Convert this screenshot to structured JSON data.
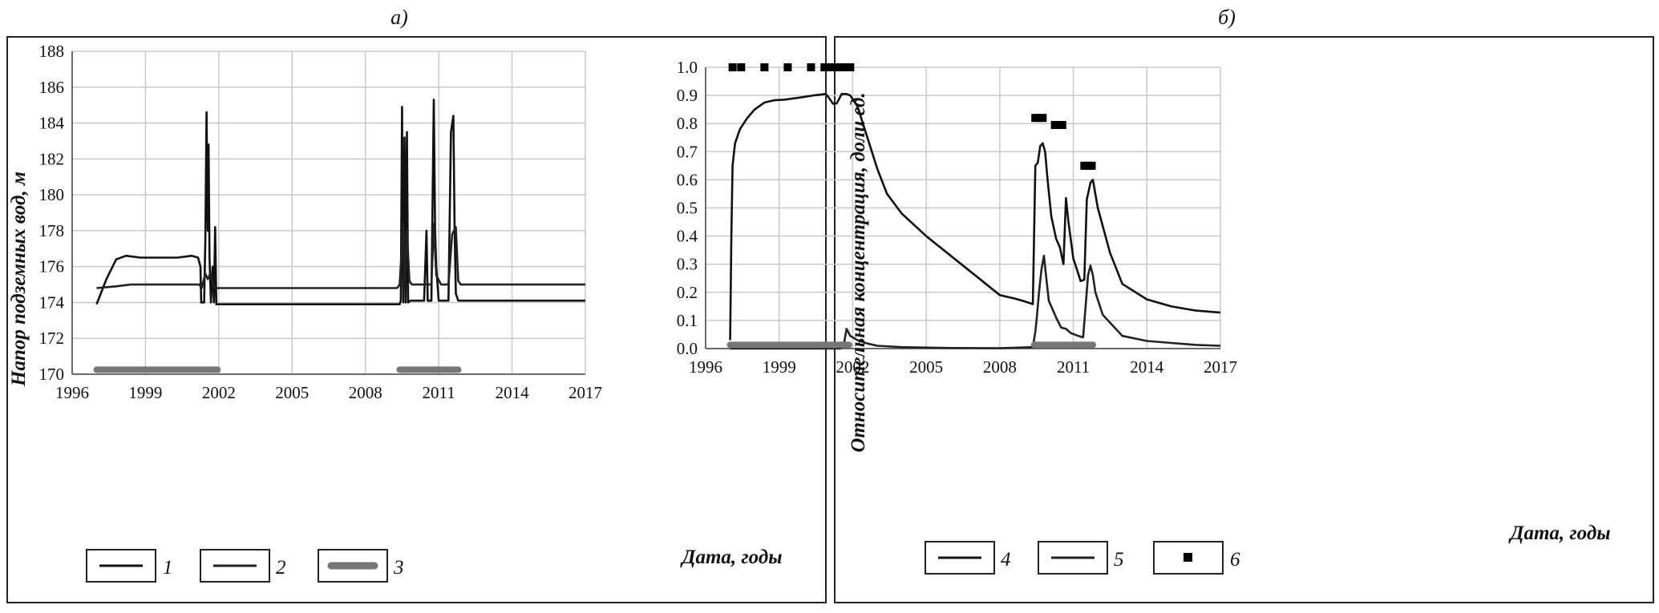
{
  "chart_data": [
    {
      "type": "line",
      "title": "а)",
      "xlabel": "Дата, годы",
      "ylabel": "Напор подземных вод, м",
      "xlim": [
        1996,
        2017
      ],
      "ylim": [
        170,
        188
      ],
      "xticks": [
        1996,
        1999,
        2002,
        2005,
        2008,
        2011,
        2014,
        2017
      ],
      "yticks": [
        170,
        172,
        174,
        176,
        178,
        180,
        182,
        184,
        186,
        188
      ],
      "grid": "on",
      "legend": "bottom-left",
      "series": [
        {
          "name": "1",
          "color": "#111111",
          "style": "line",
          "x": [
            1997,
            1997.4,
            1997.8,
            1998.2,
            1998.8,
            1999.5,
            2000.3,
            2000.9,
            2001.15,
            2001.25,
            2001.28,
            2001.4,
            2001.45,
            2001.5,
            2001.55,
            2001.58,
            2001.62,
            2001.68,
            2001.75,
            2001.8,
            2001.85,
            2001.9,
            2001.95,
            2002.0,
            2009.4,
            2009.45,
            2009.5,
            2009.55,
            2009.6,
            2009.65,
            2009.7,
            2009.75,
            2009.85,
            2010.4,
            2010.5,
            2010.55,
            2010.6,
            2010.7,
            2010.8,
            2010.85,
            2010.9,
            2011.0,
            2011.1,
            2011.4,
            2011.5,
            2011.6,
            2011.65,
            2011.7,
            2011.8,
            2017
          ],
          "y": [
            173.9,
            175.3,
            176.4,
            176.6,
            176.5,
            176.5,
            176.5,
            176.6,
            176.5,
            176.0,
            174.0,
            174.0,
            177.5,
            184.6,
            178.0,
            182.8,
            176.5,
            174.0,
            176.0,
            174.0,
            178.2,
            173.9,
            173.9,
            173.9,
            173.9,
            174.1,
            184.9,
            174.0,
            183.2,
            174.0,
            183.5,
            174.0,
            174.1,
            174.1,
            178.0,
            174.1,
            174.1,
            174.1,
            185.3,
            178.0,
            176.0,
            174.1,
            174.1,
            174.1,
            183.5,
            184.4,
            178.0,
            174.5,
            174.1,
            174.1
          ]
        },
        {
          "name": "2",
          "color": "#222222",
          "style": "line",
          "x": [
            1997,
            1997.8,
            1998.4,
            1999.5,
            2000.5,
            2001.2,
            2001.3,
            2001.45,
            2001.55,
            2001.65,
            2001.75,
            2001.85,
            2001.95,
            2002.1,
            2008.0,
            2009.3,
            2009.4,
            2009.55,
            2009.6,
            2009.7,
            2009.8,
            2009.9,
            2010.1,
            2010.4,
            2010.7,
            2010.8,
            2010.9,
            2011.1,
            2011.4,
            2011.55,
            2011.7,
            2011.8,
            2011.9,
            2017
          ],
          "y": [
            174.8,
            174.9,
            175.0,
            175.0,
            175.0,
            175.0,
            174.8,
            175.6,
            175.3,
            175.6,
            175.1,
            174.8,
            174.8,
            174.8,
            174.8,
            174.8,
            175.0,
            178.4,
            175.0,
            178.0,
            175.2,
            175.0,
            175.0,
            175.0,
            175.0,
            178.4,
            175.5,
            175.0,
            175.0,
            177.8,
            178.2,
            175.2,
            175.0,
            175.0
          ]
        },
        {
          "name": "3",
          "color": "#777777",
          "style": "thick-band",
          "x": [
            1997,
            2001.95
          ],
          "y": [
            170.25,
            170.25
          ],
          "x2": [
            2009.4,
            2011.8
          ],
          "y2": [
            170.25,
            170.25
          ]
        }
      ]
    },
    {
      "type": "line",
      "title": "б)",
      "xlabel": "Дата, годы",
      "ylabel": "Относительная концентрация, доли ед.",
      "xlim": [
        1996,
        2017
      ],
      "ylim": [
        0,
        1
      ],
      "xticks": [
        1996,
        1999,
        2002,
        2005,
        2008,
        2011,
        2014,
        2017
      ],
      "yticks": [
        "0.0",
        "0.1",
        "0.2",
        "0.3",
        "0.4",
        "0.5",
        "0.6",
        "0.7",
        "0.8",
        "0.9",
        "1.0"
      ],
      "grid": "on",
      "legend": "bottom-left",
      "series": [
        {
          "name": "4",
          "color": "#111111",
          "style": "line",
          "x": [
            1997,
            1997.05,
            1997.1,
            1997.2,
            1997.4,
            1997.7,
            1998.0,
            1998.4,
            1998.8,
            1999.2,
            1999.8,
            2000.4,
            2000.9,
            2001.0,
            2001.2,
            2001.35,
            2001.55,
            2001.75,
            2001.9,
            2002.2,
            2002.6,
            2003.0,
            2003.4,
            2004.0,
            2005.0,
            2006.0,
            2007.0,
            2008.0,
            2008.6,
            2009.0,
            2009.35,
            2009.45,
            2009.55,
            2009.65,
            2009.75,
            2009.85,
            2009.95,
            2010.1,
            2010.3,
            2010.45,
            2010.6,
            2010.7,
            2010.8,
            2011.0,
            2011.15,
            2011.3,
            2011.45,
            2011.55,
            2011.7,
            2011.8,
            2012.0,
            2012.5,
            2013.0,
            2014.0,
            2015.0,
            2016.0,
            2017.0
          ],
          "y": [
            0.03,
            0.4,
            0.65,
            0.73,
            0.78,
            0.82,
            0.85,
            0.875,
            0.883,
            0.885,
            0.892,
            0.9,
            0.905,
            0.895,
            0.87,
            0.872,
            0.905,
            0.905,
            0.9,
            0.86,
            0.75,
            0.64,
            0.55,
            0.48,
            0.4,
            0.33,
            0.26,
            0.19,
            0.178,
            0.168,
            0.158,
            0.65,
            0.66,
            0.72,
            0.73,
            0.7,
            0.6,
            0.47,
            0.39,
            0.36,
            0.3,
            0.535,
            0.45,
            0.32,
            0.28,
            0.24,
            0.245,
            0.53,
            0.59,
            0.6,
            0.5,
            0.34,
            0.23,
            0.175,
            0.15,
            0.135,
            0.128
          ]
        },
        {
          "name": "5",
          "color": "#222222",
          "style": "line",
          "x": [
            1997,
            2001.5,
            2001.65,
            2001.75,
            2001.9,
            2002.2,
            2002.6,
            2003.0,
            2004.0,
            2006.0,
            2008.0,
            2009.35,
            2009.45,
            2009.5,
            2009.6,
            2009.7,
            2009.8,
            2009.9,
            2010.0,
            2010.3,
            2010.5,
            2010.7,
            2010.9,
            2011.2,
            2011.4,
            2011.5,
            2011.6,
            2011.7,
            2011.8,
            2011.9,
            2012.2,
            2013.0,
            2014.0,
            2015.0,
            2016.0,
            2017.0
          ],
          "y": [
            0.0,
            0.0,
            0.02,
            0.07,
            0.045,
            0.03,
            0.018,
            0.01,
            0.005,
            0.002,
            0.001,
            0.005,
            0.06,
            0.1,
            0.2,
            0.28,
            0.33,
            0.25,
            0.17,
            0.11,
            0.075,
            0.07,
            0.055,
            0.045,
            0.04,
            0.15,
            0.26,
            0.295,
            0.26,
            0.2,
            0.12,
            0.045,
            0.027,
            0.02,
            0.013,
            0.01
          ]
        },
        {
          "name": "6",
          "color": "#000000",
          "style": "marker-square",
          "x": [
            1997.1,
            1997.45,
            1998.4,
            1999.35,
            2000.3,
            2000.85,
            2001.15,
            2001.3,
            2001.45,
            2001.6,
            2001.75,
            2001.9,
            2009.45,
            2009.6,
            2009.75,
            2010.25,
            2010.55,
            2011.45,
            2011.6,
            2011.75
          ],
          "y": [
            1.0,
            1.0,
            1.0,
            1.0,
            1.0,
            1.0,
            1.0,
            1.0,
            1.0,
            1.0,
            1.0,
            1.0,
            0.82,
            0.82,
            0.82,
            0.795,
            0.795,
            0.65,
            0.65,
            0.65
          ]
        },
        {
          "name": "",
          "color": "#777777",
          "style": "thick-band",
          "x": [
            1997,
            2001.85
          ],
          "y": [
            0.013,
            0.013
          ],
          "x2": [
            2009.4,
            2011.8
          ],
          "y2": [
            0.013,
            0.013
          ]
        }
      ]
    }
  ]
}
